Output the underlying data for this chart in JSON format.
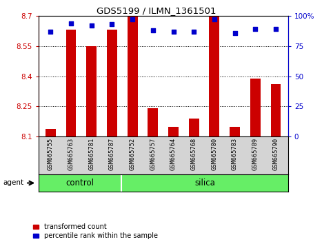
{
  "title": "GDS5199 / ILMN_1361501",
  "samples": [
    "GSM665755",
    "GSM665763",
    "GSM665781",
    "GSM665787",
    "GSM665752",
    "GSM665757",
    "GSM665764",
    "GSM665768",
    "GSM665780",
    "GSM665783",
    "GSM665789",
    "GSM665790"
  ],
  "groups": [
    "control",
    "control",
    "control",
    "control",
    "silica",
    "silica",
    "silica",
    "silica",
    "silica",
    "silica",
    "silica",
    "silica"
  ],
  "transformed_count": [
    8.14,
    8.63,
    8.55,
    8.63,
    8.7,
    8.24,
    8.15,
    8.19,
    8.7,
    8.15,
    8.39,
    8.36
  ],
  "percentile_rank": [
    87,
    94,
    92,
    93,
    97,
    88,
    87,
    87,
    97,
    86,
    89,
    89
  ],
  "ylim_left": [
    8.1,
    8.7
  ],
  "ylim_right": [
    0,
    100
  ],
  "yticks_left": [
    8.1,
    8.25,
    8.4,
    8.55,
    8.7
  ],
  "yticks_right": [
    0,
    25,
    50,
    75,
    100
  ],
  "ytick_labels_right": [
    "0",
    "25",
    "50",
    "75",
    "100%"
  ],
  "bar_color": "#cc0000",
  "dot_color": "#0000cc",
  "bar_width": 0.5,
  "baseline": 8.1,
  "group_bar_color": "#66ee66",
  "agent_label": "agent",
  "control_label": "control",
  "silica_label": "silica",
  "legend_bar_label": "transformed count",
  "legend_dot_label": "percentile rank within the sample",
  "n_control": 4,
  "n_silica": 8,
  "label_area_color": "#d4d4d4",
  "divider_color": "white"
}
